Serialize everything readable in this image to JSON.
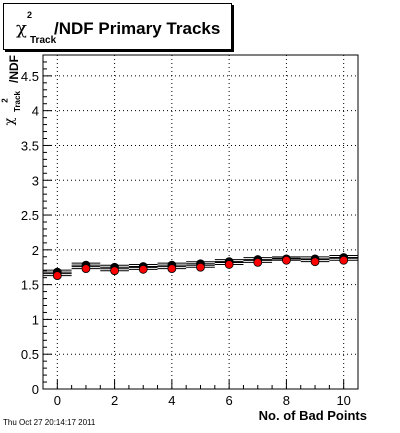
{
  "chart_data": {
    "type": "scatter",
    "title": "/NDF Primary Tracks",
    "title_symbol": "χ",
    "title_sup": "2",
    "title_sub": "Track",
    "ylabel": "/NDF",
    "ylabel_symbol": "χ",
    "ylabel_sup": "2",
    "ylabel_sub": "Track",
    "xlabel": "No. of Bad Points",
    "xlim": [
      -0.5,
      10.5
    ],
    "ylim": [
      0,
      4.8
    ],
    "x_ticks": [
      0,
      2,
      4,
      6,
      8,
      10
    ],
    "y_ticks": [
      0,
      0.5,
      1,
      1.5,
      2,
      2.5,
      3,
      3.5,
      4,
      4.5
    ],
    "grid": true,
    "series": [
      {
        "color": "#000000",
        "x": [
          0,
          1,
          2,
          3,
          4,
          5,
          6,
          7,
          8,
          9,
          10
        ],
        "y": [
          1.68,
          1.78,
          1.75,
          1.76,
          1.78,
          1.8,
          1.83,
          1.86,
          1.87,
          1.87,
          1.89
        ]
      },
      {
        "color": "#ff0000",
        "x": [
          0,
          1,
          2,
          3,
          4,
          5,
          6,
          7,
          8,
          9,
          10
        ],
        "y": [
          1.63,
          1.73,
          1.7,
          1.72,
          1.73,
          1.75,
          1.79,
          1.82,
          1.85,
          1.83,
          1.85
        ]
      }
    ]
  },
  "footer": {
    "timestamp": "Thu Oct 27 20:14:17 2011"
  }
}
